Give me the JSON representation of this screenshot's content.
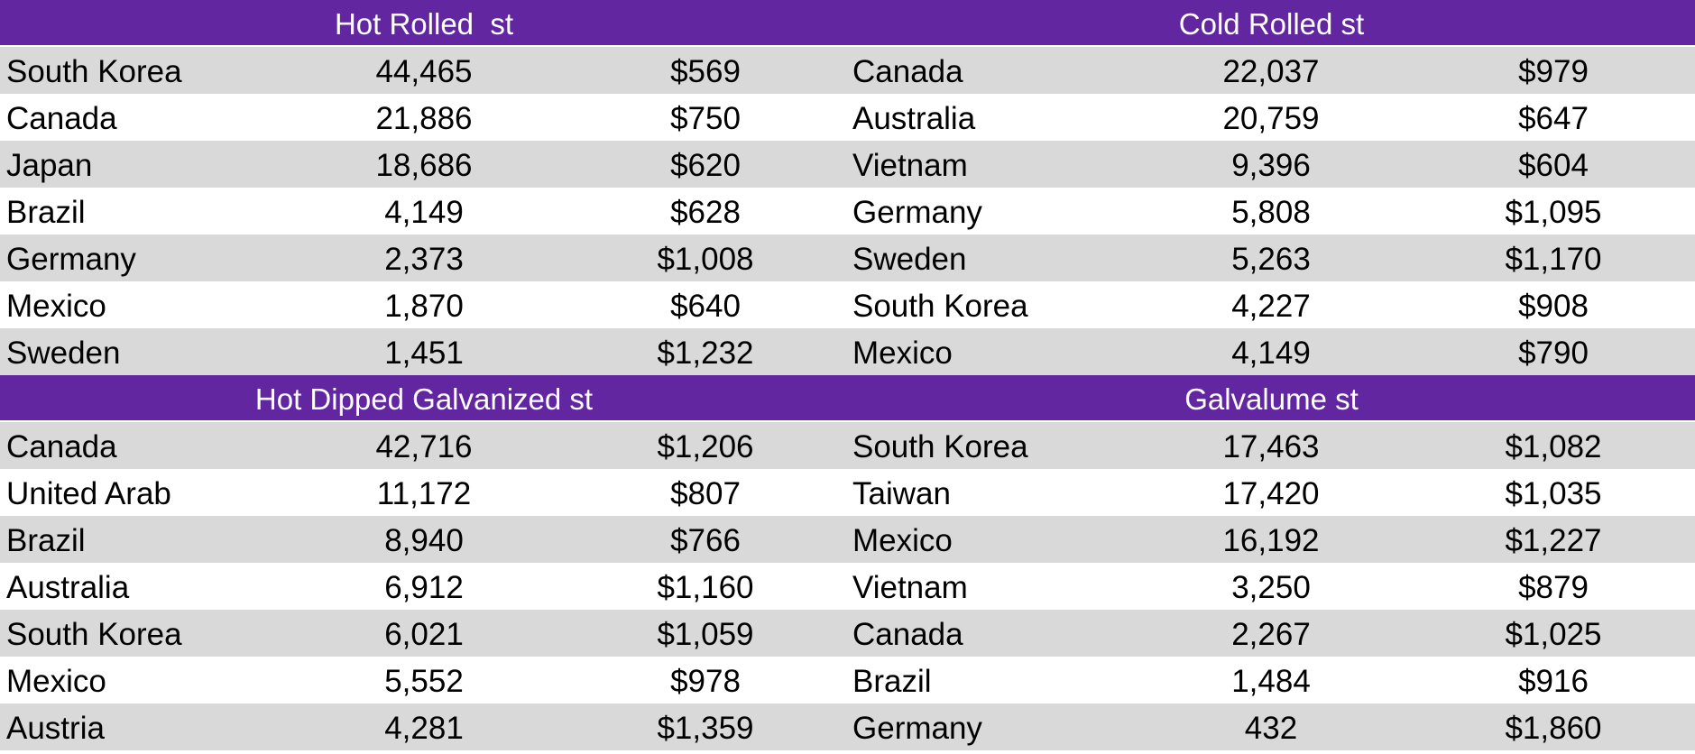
{
  "sections": [
    {
      "left": {
        "title": "Hot Rolled  st",
        "rows": [
          [
            "South Korea",
            "44,465",
            "$569"
          ],
          [
            "Canada",
            "21,886",
            "$750"
          ],
          [
            "Japan",
            "18,686",
            "$620"
          ],
          [
            "Brazil",
            "4,149",
            "$628"
          ],
          [
            "Germany",
            "2,373",
            "$1,008"
          ],
          [
            "Mexico",
            "1,870",
            "$640"
          ],
          [
            "Sweden",
            "1,451",
            "$1,232"
          ]
        ]
      },
      "right": {
        "title": "Cold Rolled st",
        "rows": [
          [
            "Canada",
            "22,037",
            "$979"
          ],
          [
            "Australia",
            "20,759",
            "$647"
          ],
          [
            "Vietnam",
            "9,396",
            "$604"
          ],
          [
            "Germany",
            "5,808",
            "$1,095"
          ],
          [
            "Sweden",
            "5,263",
            "$1,170"
          ],
          [
            "South Korea",
            "4,227",
            "$908"
          ],
          [
            "Mexico",
            "4,149",
            "$790"
          ]
        ]
      }
    },
    {
      "left": {
        "title": "Hot Dipped Galvanized st",
        "rows": [
          [
            "Canada",
            "42,716",
            "$1,206"
          ],
          [
            "United Arab",
            "11,172",
            "$807"
          ],
          [
            "Brazil",
            "8,940",
            "$766"
          ],
          [
            "Australia",
            "6,912",
            "$1,160"
          ],
          [
            "South Korea",
            "6,021",
            "$1,059"
          ],
          [
            "Mexico",
            "5,552",
            "$978"
          ],
          [
            "Austria",
            "4,281",
            "$1,359"
          ]
        ]
      },
      "right": {
        "title": "Galvalume st",
        "rows": [
          [
            "South Korea",
            "17,463",
            "$1,082"
          ],
          [
            "Taiwan",
            "17,420",
            "$1,035"
          ],
          [
            "Mexico",
            "16,192",
            "$1,227"
          ],
          [
            "Vietnam",
            "3,250",
            "$879"
          ],
          [
            "Canada",
            "2,267",
            "$1,025"
          ],
          [
            "Brazil",
            "1,484",
            "$916"
          ],
          [
            "Germany",
            "432",
            "$1,860"
          ]
        ]
      }
    }
  ],
  "colors": {
    "header_band": "#6226a0",
    "stripe": "#d9d9d9",
    "background": "#ffffff",
    "header_text": "#ffffff"
  }
}
